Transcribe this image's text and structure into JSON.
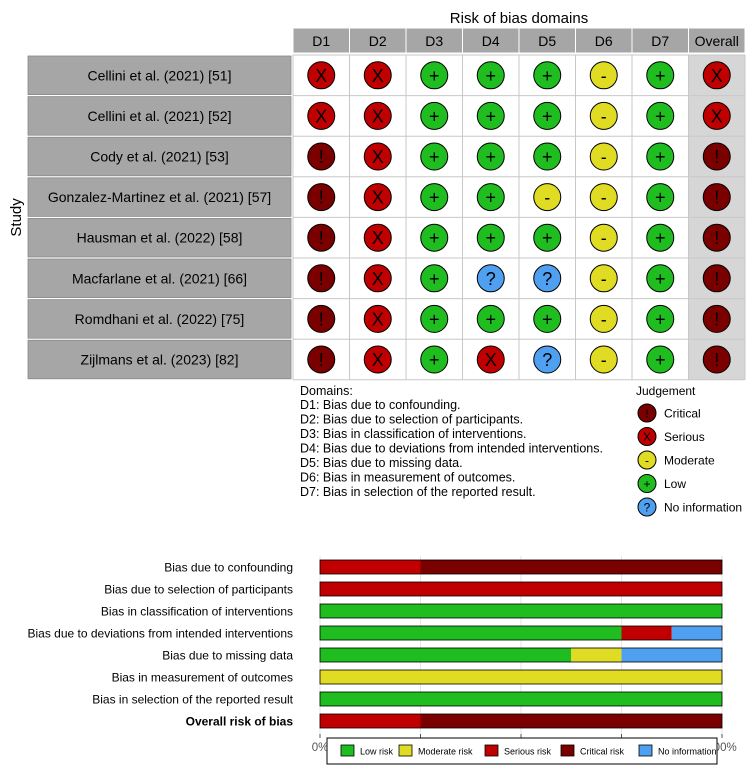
{
  "chart_data": [
    {
      "type": "table",
      "title": "Risk of bias domains",
      "ylabel": "Study",
      "columns": [
        "D1",
        "D2",
        "D3",
        "D4",
        "D5",
        "D6",
        "D7",
        "Overall"
      ],
      "rows": [
        {
          "study": "Cellini et al. (2021) [51]",
          "judgements": [
            "serious",
            "serious",
            "low",
            "low",
            "low",
            "moderate",
            "low",
            "serious"
          ]
        },
        {
          "study": "Cellini et al. (2021) [52]",
          "judgements": [
            "serious",
            "serious",
            "low",
            "low",
            "low",
            "moderate",
            "low",
            "serious"
          ]
        },
        {
          "study": "Cody et al. (2021) [53]",
          "judgements": [
            "critical",
            "serious",
            "low",
            "low",
            "low",
            "moderate",
            "low",
            "critical"
          ]
        },
        {
          "study": "Gonzalez-Martinez et al. (2021) [57]",
          "judgements": [
            "critical",
            "serious",
            "low",
            "low",
            "moderate",
            "moderate",
            "low",
            "critical"
          ]
        },
        {
          "study": "Hausman et al. (2022) [58]",
          "judgements": [
            "critical",
            "serious",
            "low",
            "low",
            "low",
            "moderate",
            "low",
            "critical"
          ]
        },
        {
          "study": "Macfarlane et al. (2021) [66]",
          "judgements": [
            "critical",
            "serious",
            "low",
            "no_information",
            "no_information",
            "moderate",
            "low",
            "critical"
          ]
        },
        {
          "study": "Romdhani et al. (2022) [75]",
          "judgements": [
            "critical",
            "serious",
            "low",
            "low",
            "low",
            "moderate",
            "low",
            "critical"
          ]
        },
        {
          "study": "Zijlmans et al. (2023) [82]",
          "judgements": [
            "critical",
            "serious",
            "low",
            "serious",
            "no_information",
            "moderate",
            "low",
            "critical"
          ]
        }
      ],
      "domains_heading": "Domains:",
      "domains": [
        "D1: Bias due to confounding.",
        "D2: Bias due to selection of participants.",
        "D3: Bias in classification of interventions.",
        "D4: Bias due to deviations from intended interventions.",
        "D5: Bias due to missing data.",
        "D6: Bias in measurement of outcomes.",
        "D7: Bias in selection of the reported result."
      ],
      "judgement_legend_title": "Judgement",
      "judgement_legend": [
        {
          "key": "critical",
          "label": "Critical",
          "symbol": "!",
          "color": "#7a0000"
        },
        {
          "key": "serious",
          "label": "Serious",
          "symbol": "X",
          "color": "#c00000"
        },
        {
          "key": "moderate",
          "label": "Moderate",
          "symbol": "-",
          "color": "#e0dc24"
        },
        {
          "key": "low",
          "label": "Low",
          "symbol": "+",
          "color": "#1fbd1f"
        },
        {
          "key": "no_information",
          "label": "No information",
          "symbol": "?",
          "color": "#4fa0f0"
        }
      ]
    },
    {
      "type": "bar",
      "orientation": "horizontal",
      "stacked": true,
      "categories": [
        "Bias due to confounding",
        "Bias due to selection of participants",
        "Bias in classification of interventions",
        "Bias due to deviations from intended interventions",
        "Bias due to missing data",
        "Bias in measurement of outcomes",
        "Bias in selection of the reported result",
        "Overall risk of bias"
      ],
      "bold_categories": [
        "Overall risk of bias"
      ],
      "series": [
        {
          "name": "Low risk",
          "color": "#1fbd1f",
          "values": [
            0,
            0,
            100,
            75,
            62.5,
            0,
            100,
            0
          ]
        },
        {
          "name": "Moderate risk",
          "color": "#e0dc24",
          "values": [
            0,
            0,
            0,
            0,
            12.5,
            100,
            0,
            0
          ]
        },
        {
          "name": "Serious risk",
          "color": "#c00000",
          "values": [
            25,
            100,
            0,
            12.5,
            0,
            0,
            0,
            25
          ]
        },
        {
          "name": "Critical risk",
          "color": "#7a0000",
          "values": [
            75,
            0,
            0,
            0,
            0,
            0,
            0,
            75
          ]
        },
        {
          "name": "No information",
          "color": "#4fa0f0",
          "values": [
            0,
            0,
            0,
            12.5,
            25,
            0,
            0,
            0
          ]
        }
      ],
      "xlim": [
        0,
        100
      ],
      "xticks": [
        "0%",
        "25%",
        "50%",
        "75%",
        "100%"
      ],
      "legend_position": "bottom"
    }
  ]
}
